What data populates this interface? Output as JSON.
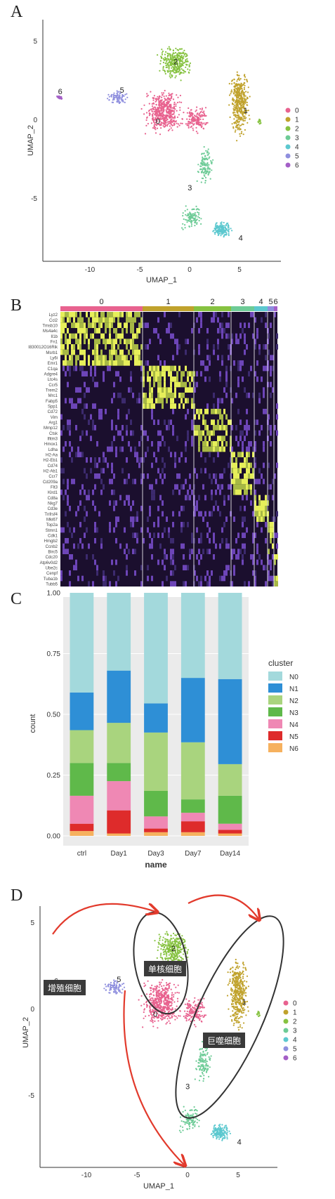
{
  "panels": {
    "A": {
      "letter": "A"
    },
    "B": {
      "letter": "B"
    },
    "C": {
      "letter": "C"
    },
    "D": {
      "letter": "D"
    }
  },
  "colors": {
    "c0": "#e8628f",
    "c1": "#c0a22c",
    "c2": "#86c240",
    "c3": "#6dcb96",
    "c4": "#5cc8cf",
    "c5": "#8f8fde",
    "c6": "#a45fc7",
    "N0": "#a3d9dc",
    "N1": "#2e8fd6",
    "N2": "#a9d47e",
    "N3": "#5fb94a",
    "N4": "#ef88b4",
    "N5": "#de2b2b",
    "N6": "#f6b15e",
    "arrow": "#e23a2c",
    "ellipse": "#333333"
  },
  "umap": {
    "xlabel": "UMAP_1",
    "ylabel": "UMAP_2",
    "xticks": [
      "-10",
      "-5",
      "0",
      "5"
    ],
    "yticks": [
      "5",
      "0",
      "-5"
    ],
    "legend": [
      "0",
      "1",
      "2",
      "3",
      "4",
      "5",
      "6"
    ],
    "cluster_labels": [
      "0",
      "1",
      "2",
      "3",
      "4",
      "5",
      "6"
    ]
  },
  "heatmap": {
    "clusters": [
      "0",
      "1",
      "2",
      "3",
      "4",
      "5",
      "6"
    ],
    "genes": [
      "Lyz2",
      "Ccl2",
      "Tmsb10",
      "Ms4a4c",
      "Il1b",
      "Fn1",
      "I830012O16Rik",
      "Msrb1",
      "Ly6i",
      "Emr1",
      "C1qa",
      "Adgre4",
      "Ltc4s",
      "Ccr5",
      "Trem2",
      "Mrc1",
      "Fabp5",
      "Spp1",
      "Cd72",
      "Vim",
      "Arg1",
      "Mmp12",
      "Ctsk",
      "Ifitm3",
      "Hmox1",
      "Ldha",
      "H2-Aa",
      "H2-Eb1",
      "Cd74",
      "H2-Ab1",
      "Ccr7",
      "Cd209a",
      "Flt3",
      "Klrd1",
      "Cd8a",
      "Nkg7",
      "Cd3e",
      "Tnfrsf4",
      "Mki67",
      "Top2a",
      "Stmn1",
      "Cdk1",
      "Hmgb2",
      "Ccnb2",
      "Birc5",
      "Cdc20",
      "Atp6v0d2",
      "Ube2c",
      "Cenpf",
      "Tuba1b",
      "Tubb5"
    ]
  },
  "chart_data": {
    "type": "bar",
    "stacked": true,
    "categories": [
      "ctrl",
      "Day1",
      "Day3",
      "Day7",
      "Day14"
    ],
    "series": [
      {
        "name": "N0",
        "values": [
          0.41,
          0.32,
          0.455,
          0.35,
          0.355
        ]
      },
      {
        "name": "N1",
        "values": [
          0.155,
          0.215,
          0.12,
          0.265,
          0.35
        ]
      },
      {
        "name": "N2",
        "values": [
          0.135,
          0.165,
          0.24,
          0.235,
          0.13
        ]
      },
      {
        "name": "N3",
        "values": [
          0.135,
          0.075,
          0.105,
          0.055,
          0.115
        ]
      },
      {
        "name": "N4",
        "values": [
          0.115,
          0.12,
          0.05,
          0.035,
          0.025
        ]
      },
      {
        "name": "N5",
        "values": [
          0.03,
          0.095,
          0.015,
          0.045,
          0.015
        ]
      },
      {
        "name": "N6",
        "values": [
          0.02,
          0.01,
          0.015,
          0.015,
          0.01
        ]
      }
    ],
    "xlabel": "name",
    "ylabel": "count",
    "ylim": [
      0,
      1
    ],
    "yticks": [
      "0.00",
      "0.25",
      "0.50",
      "0.75",
      "1.00"
    ],
    "legend_title": "cluster",
    "legend_position": "right",
    "grid": true
  },
  "annotations": {
    "proliferating": "增殖细胞",
    "monocyte": "单核细胞",
    "macrophage": "巨噬细胞"
  }
}
